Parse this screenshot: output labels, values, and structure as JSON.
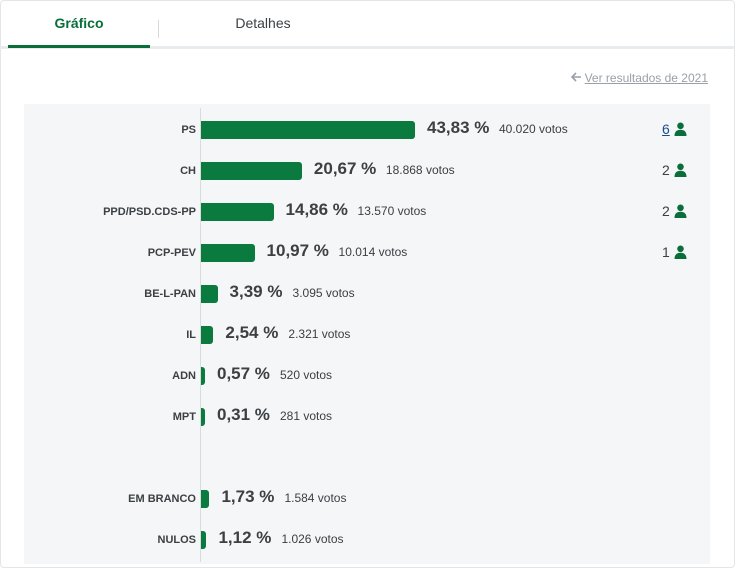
{
  "tabs": [
    {
      "label": "Gráfico",
      "active": true
    },
    {
      "label": "Detalhes",
      "active": false
    }
  ],
  "previous_results_link": "Ver resultados de 2021",
  "colors": {
    "accent": "#0a6e3a",
    "bar": "#0a7a3f",
    "panel": "#f4f6f8"
  },
  "chart_data": {
    "type": "bar",
    "orientation": "horizontal",
    "categories": [
      "PS",
      "CH",
      "PPD/PSD.CDS-PP",
      "PCP-PEV",
      "BE-L-PAN",
      "IL",
      "ADN",
      "MPT",
      "EM BRANCO",
      "NULOS"
    ],
    "values": [
      43.83,
      20.67,
      14.86,
      10.97,
      3.39,
      2.54,
      0.57,
      0.31,
      1.73,
      1.12
    ],
    "value_labels": [
      "43,83 %",
      "20,67 %",
      "14,86 %",
      "10,97 %",
      "3,39 %",
      "2,54 %",
      "0,57 %",
      "0,31 %",
      "1,73 %",
      "1,12 %"
    ],
    "votes": [
      "40.020 votos",
      "18.868 votos",
      "13.570 votos",
      "10.014 votos",
      "3.095 votos",
      "2.321 votos",
      "520 votos",
      "281 votos",
      "1.584 votos",
      "1.026 votos"
    ],
    "seats": [
      "6",
      "2",
      "2",
      "1",
      null,
      null,
      null,
      null,
      null,
      null
    ],
    "seats_icon": "person-icon",
    "xlim": [
      0,
      100
    ],
    "grid": false
  }
}
